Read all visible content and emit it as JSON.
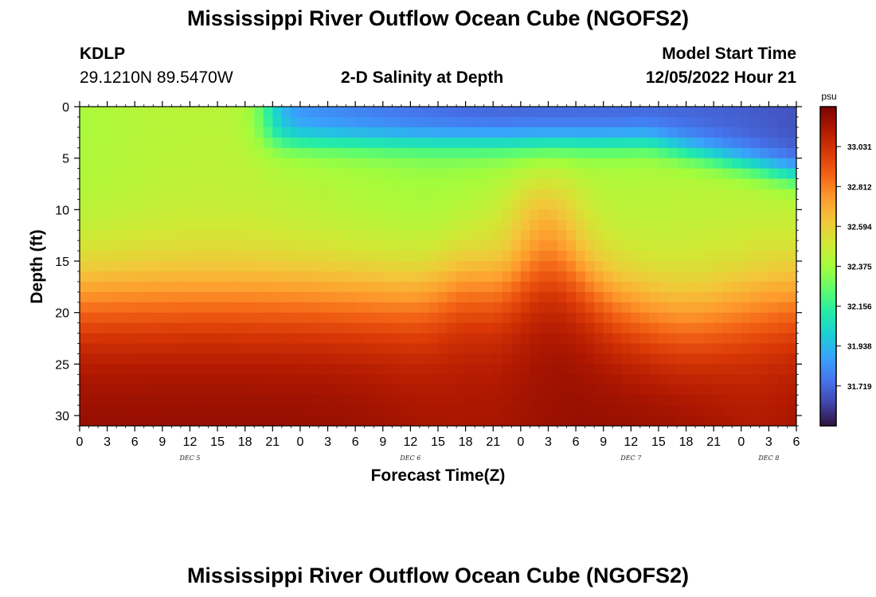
{
  "header": {
    "title": "Mississippi River Outflow Ocean Cube (NGOFS2)",
    "station": "KDLP",
    "coords": "29.1210N  89.5470W",
    "plot_title": "2-D Salinity at Depth",
    "model_start_label": "Model Start Time",
    "model_start_value": "12/05/2022 Hour 21"
  },
  "footer": {
    "title": "Mississippi River Outflow Ocean Cube (NGOFS2)"
  },
  "chart_data": {
    "type": "heatmap",
    "title": "2-D Salinity at Depth",
    "xlabel": "Forecast Time(Z)",
    "ylabel": "Depth (ft)",
    "x_range_hours": [
      0,
      78
    ],
    "y_range_ft": [
      0,
      31
    ],
    "x_tick_hours": [
      0,
      3,
      6,
      9,
      12,
      15,
      18,
      21,
      24,
      27,
      30,
      33,
      36,
      39,
      42,
      45,
      48,
      51,
      54,
      57,
      60,
      63,
      66,
      69,
      72,
      75,
      78
    ],
    "x_tick_labels": [
      "0",
      "3",
      "6",
      "9",
      "12",
      "15",
      "18",
      "21",
      "0",
      "3",
      "6",
      "9",
      "12",
      "15",
      "18",
      "21",
      "0",
      "3",
      "6",
      "9",
      "12",
      "15",
      "18",
      "21",
      "0",
      "3",
      "6"
    ],
    "day_labels": [
      {
        "text": "DEC 5",
        "hour": 12
      },
      {
        "text": "DEC 6",
        "hour": 36
      },
      {
        "text": "DEC 7",
        "hour": 60
      },
      {
        "text": "DEC 8",
        "hour": 75
      }
    ],
    "y_ticks": [
      0,
      5,
      10,
      15,
      20,
      25,
      30
    ],
    "colorbar": {
      "unit": "psu",
      "min": 31.5,
      "max": 33.25,
      "tick_values": [
        33.031,
        32.812,
        32.594,
        32.375,
        32.156,
        31.938,
        31.719
      ],
      "tick_labels": [
        "33.031",
        "32.812",
        "32.594",
        "32.375",
        "32.156",
        "31.938",
        "31.719"
      ],
      "colors": [
        "#30123b",
        "#4145ab",
        "#4675ed",
        "#39a2fc",
        "#1bcfd4",
        "#24eca6",
        "#61fc6c",
        "#a4fc3b",
        "#d1e834",
        "#f3c63a",
        "#fe9b2d",
        "#f36315",
        "#d93806",
        "#b11901",
        "#7a0402"
      ]
    },
    "salinity_profile_psu": {
      "description_depth_ft": [
        0,
        5,
        10,
        15,
        20,
        25,
        30
      ],
      "freshwater_lens_hours": [
        19,
        78
      ]
    },
    "grid": false
  }
}
